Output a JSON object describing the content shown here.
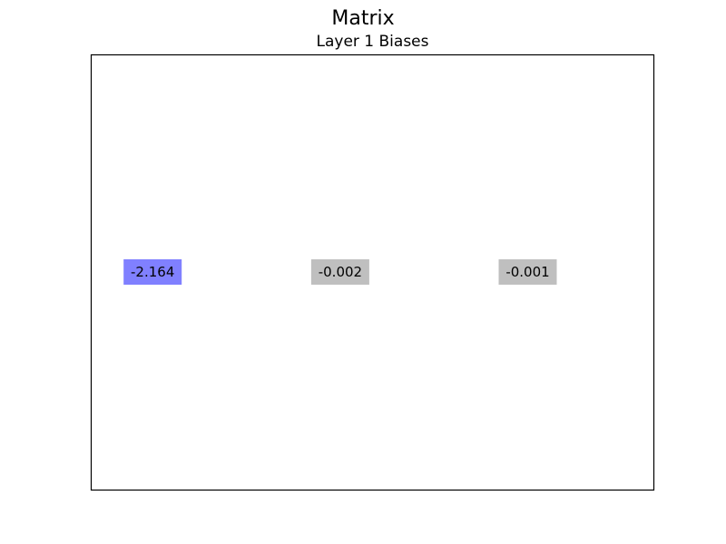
{
  "title": "Matrix",
  "chart_data": {
    "type": "table",
    "title": "Layer 1 Biases",
    "xlabel": "",
    "ylabel": "",
    "grid": false,
    "rows": 1,
    "columns": 3,
    "values": [
      -2.164,
      -0.002,
      -0.001
    ],
    "labels": [
      "-2.164",
      "-0.002",
      "-0.001"
    ],
    "cell_colors": [
      "#8080ff",
      "#bfbfbf",
      "#bfbfbf"
    ],
    "axes_color": "#000000"
  }
}
